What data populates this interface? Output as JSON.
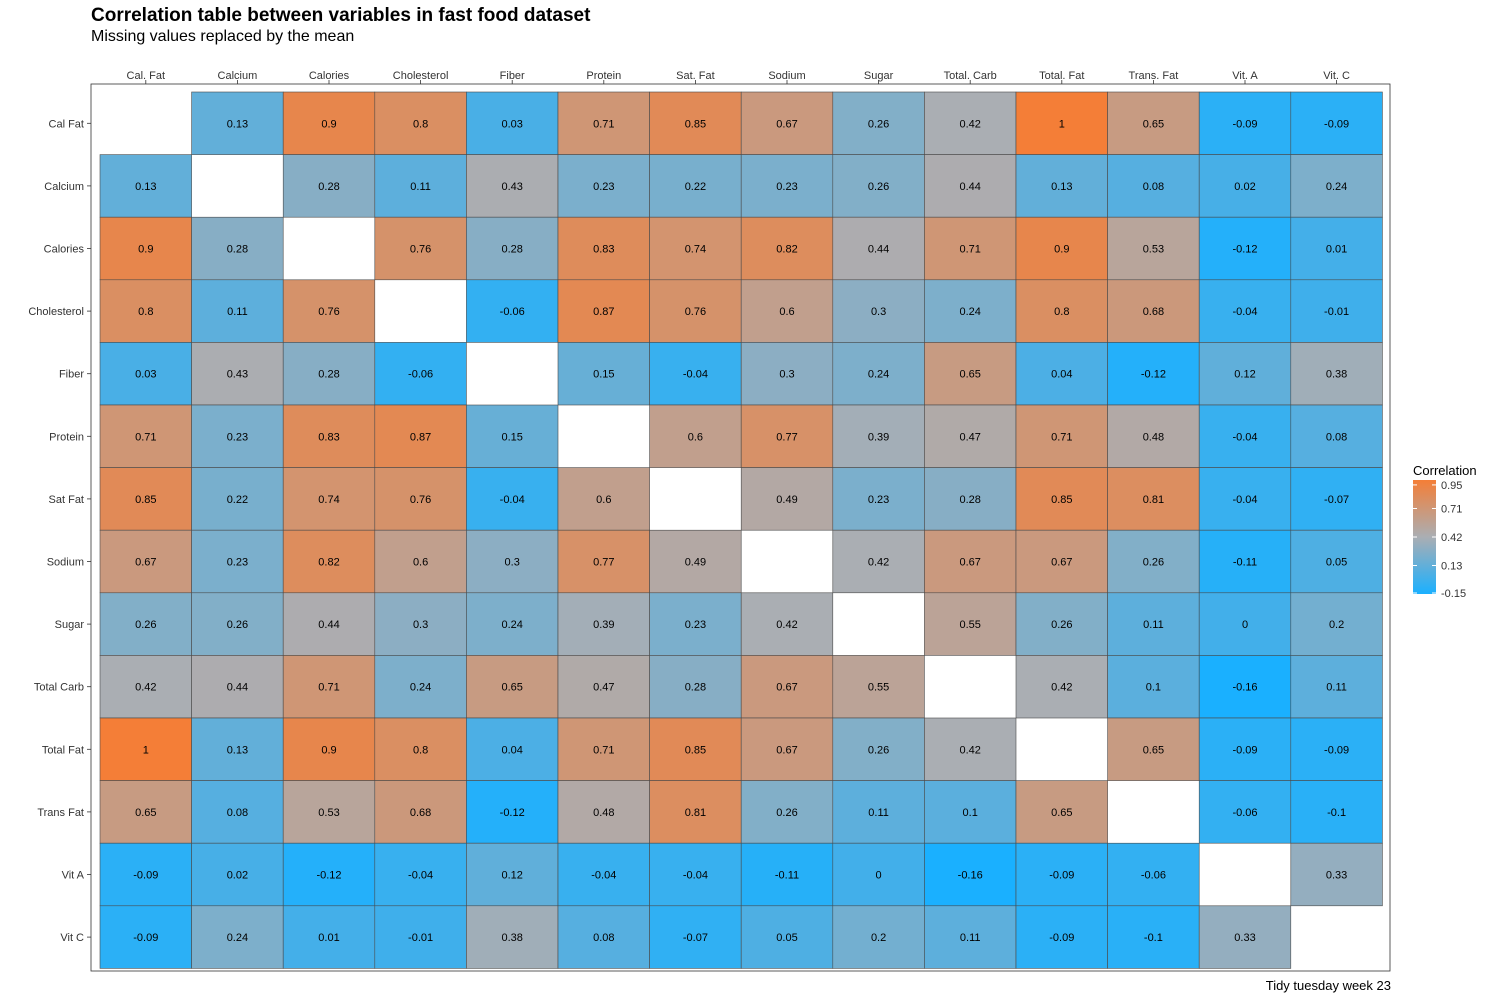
{
  "chart_data": {
    "type": "heatmap",
    "title": "Correlation table between variables in fast food dataset",
    "subtitle": "Missing values replaced by the mean",
    "caption": "Tidy tuesday week 23",
    "x_categories": [
      "Cal. Fat",
      "Calcium",
      "Calories",
      "Cholesterol",
      "Fiber",
      "Protein",
      "Sat. Fat",
      "Sodium",
      "Sugar",
      "Total. Carb",
      "Total. Fat",
      "Trans. Fat",
      "Vit. A",
      "Vit. C"
    ],
    "y_categories": [
      "Cal Fat",
      "Calcium",
      "Calories",
      "Cholesterol",
      "Fiber",
      "Protein",
      "Sat Fat",
      "Sodium",
      "Sugar",
      "Total Carb",
      "Total Fat",
      "Trans Fat",
      "Vit A",
      "Vit C"
    ],
    "values": [
      [
        null,
        0.13,
        0.9,
        0.8,
        0.03,
        0.71,
        0.85,
        0.67,
        0.26,
        0.42,
        1,
        0.65,
        -0.09,
        -0.09
      ],
      [
        0.13,
        null,
        0.28,
        0.11,
        0.43,
        0.23,
        0.22,
        0.23,
        0.26,
        0.44,
        0.13,
        0.08,
        0.02,
        0.24
      ],
      [
        0.9,
        0.28,
        null,
        0.76,
        0.28,
        0.83,
        0.74,
        0.82,
        0.44,
        0.71,
        0.9,
        0.53,
        -0.12,
        0.01
      ],
      [
        0.8,
        0.11,
        0.76,
        null,
        -0.06,
        0.87,
        0.76,
        0.6,
        0.3,
        0.24,
        0.8,
        0.68,
        -0.04,
        -0.01
      ],
      [
        0.03,
        0.43,
        0.28,
        -0.06,
        null,
        0.15,
        -0.04,
        0.3,
        0.24,
        0.65,
        0.04,
        -0.12,
        0.12,
        0.38
      ],
      [
        0.71,
        0.23,
        0.83,
        0.87,
        0.15,
        null,
        0.6,
        0.77,
        0.39,
        0.47,
        0.71,
        0.48,
        -0.04,
        0.08
      ],
      [
        0.85,
        0.22,
        0.74,
        0.76,
        -0.04,
        0.6,
        null,
        0.49,
        0.23,
        0.28,
        0.85,
        0.81,
        -0.04,
        -0.07
      ],
      [
        0.67,
        0.23,
        0.82,
        0.6,
        0.3,
        0.77,
        0.49,
        null,
        0.42,
        0.67,
        0.67,
        0.26,
        -0.11,
        0.05
      ],
      [
        0.26,
        0.26,
        0.44,
        0.3,
        0.24,
        0.39,
        0.23,
        0.42,
        null,
        0.55,
        0.26,
        0.11,
        0,
        0.2
      ],
      [
        0.42,
        0.44,
        0.71,
        0.24,
        0.65,
        0.47,
        0.28,
        0.67,
        0.55,
        null,
        0.42,
        0.1,
        -0.16,
        0.11
      ],
      [
        1,
        0.13,
        0.9,
        0.8,
        0.04,
        0.71,
        0.85,
        0.67,
        0.26,
        0.42,
        null,
        0.65,
        -0.09,
        -0.09
      ],
      [
        0.65,
        0.08,
        0.53,
        0.68,
        -0.12,
        0.48,
        0.81,
        0.26,
        0.11,
        0.1,
        0.65,
        null,
        -0.06,
        -0.1
      ],
      [
        -0.09,
        0.02,
        -0.12,
        -0.04,
        0.12,
        -0.04,
        -0.04,
        -0.11,
        0,
        -0.16,
        -0.09,
        -0.06,
        null,
        0.33
      ],
      [
        -0.09,
        0.24,
        0.01,
        -0.01,
        0.38,
        0.08,
        -0.07,
        0.05,
        0.2,
        0.11,
        -0.09,
        -0.1,
        0.33,
        null
      ]
    ],
    "legend": {
      "title": "Correlation",
      "labels": [
        "0.95",
        "0.71",
        "0.42",
        "0.13",
        "-0.15"
      ],
      "ticks": [
        0.95,
        0.71,
        0.42,
        0.13,
        -0.15
      ],
      "placement": "right"
    },
    "color_scale": {
      "low": "#1AB0FF",
      "mid": "#AAAEB3",
      "high": "#F47E37",
      "range": [
        -0.16,
        1.0
      ],
      "midpoint": 0.42
    },
    "x_axis_position": "top",
    "grid": false
  }
}
